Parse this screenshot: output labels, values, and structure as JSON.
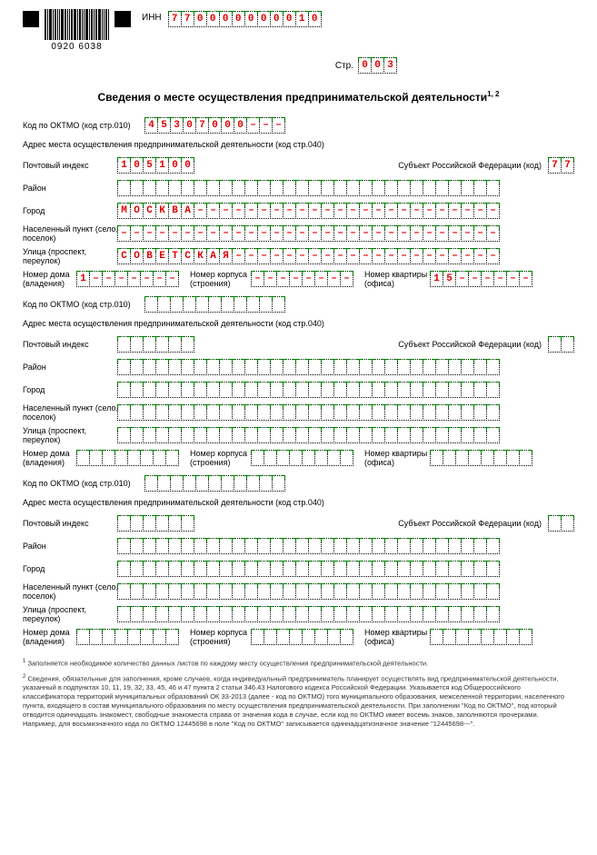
{
  "barcode_number": "0920 6038",
  "inn_label": "ИНН",
  "inn": [
    "7",
    "7",
    "0",
    "0",
    "0",
    "0",
    "0",
    "0",
    "0",
    "0",
    "1",
    "0"
  ],
  "str_label": "Стр.",
  "str": [
    "0",
    "0",
    "3"
  ],
  "title": "Сведения о месте осуществления предпринимательской деятельности",
  "title_sup": "1, 2",
  "labels": {
    "oktmo": "Код по ОКТМО (код стр.010)",
    "addr_heading": "Адрес места осуществления предпринимательской деятельности (код стр.040)",
    "post_index": "Почтовый индекс",
    "subject": "Субъект Российской Федерации (код)",
    "raion": "Район",
    "gorod": "Город",
    "nas_punkt": "Населенный пункт (село, поселок)",
    "ulica": "Улица (проспект, переулок)",
    "dom": "Номер дома (владения)",
    "korpus": "Номер корпуса (строения)",
    "kvartira": "Номер квартиры (офиса)"
  },
  "blocks": [
    {
      "oktmo": [
        "4",
        "5",
        "3",
        "0",
        "7",
        "0",
        "0",
        "0",
        "–",
        "–",
        "–"
      ],
      "post_index": [
        "1",
        "0",
        "5",
        "1",
        "0",
        "0"
      ],
      "subject": [
        "7",
        "7"
      ],
      "raion_len": 30,
      "raion": [],
      "gorod_len": 30,
      "gorod": [
        "М",
        "О",
        "С",
        "К",
        "В",
        "А",
        "–",
        "–",
        "–",
        "–",
        "–",
        "–",
        "–",
        "–",
        "–",
        "–",
        "–",
        "–",
        "–",
        "–",
        "–",
        "–",
        "–",
        "–",
        "–",
        "–",
        "–",
        "–",
        "–",
        "–"
      ],
      "nas_len": 30,
      "nas": [
        "–",
        "–",
        "–",
        "–",
        "–",
        "–",
        "–",
        "–",
        "–",
        "–",
        "–",
        "–",
        "–",
        "–",
        "–",
        "–",
        "–",
        "–",
        "–",
        "–",
        "–",
        "–",
        "–",
        "–",
        "–",
        "–",
        "–",
        "–",
        "–",
        "–"
      ],
      "ulica_len": 30,
      "ulica": [
        "С",
        "О",
        "В",
        "Е",
        "Т",
        "С",
        "К",
        "А",
        "Я",
        "–",
        "–",
        "–",
        "–",
        "–",
        "–",
        "–",
        "–",
        "–",
        "–",
        "–",
        "–",
        "–",
        "–",
        "–",
        "–",
        "–",
        "–",
        "–",
        "–",
        "–"
      ],
      "dom": [
        "1",
        "–",
        "–",
        "–",
        "–",
        "–",
        "–",
        "–"
      ],
      "korpus": [
        "–",
        "–",
        "–",
        "–",
        "–",
        "–",
        "–",
        "–"
      ],
      "kvartira": [
        "1",
        "5",
        "–",
        "–",
        "–",
        "–",
        "–",
        "–"
      ]
    },
    {
      "oktmo": [
        "",
        "",
        "",
        "",
        "",
        "",
        "",
        "",
        "",
        "",
        ""
      ],
      "post_index": [
        "",
        "",
        "",
        "",
        "",
        ""
      ],
      "subject": [
        "",
        ""
      ],
      "raion_len": 30,
      "raion": [],
      "gorod_len": 30,
      "gorod": [],
      "nas_len": 30,
      "nas": [],
      "ulica_len": 30,
      "ulica": [],
      "dom": [
        "",
        "",
        "",
        "",
        "",
        "",
        "",
        ""
      ],
      "korpus": [
        "",
        "",
        "",
        "",
        "",
        "",
        "",
        ""
      ],
      "kvartira": [
        "",
        "",
        "",
        "",
        "",
        "",
        "",
        ""
      ]
    },
    {
      "oktmo": [
        "",
        "",
        "",
        "",
        "",
        "",
        "",
        "",
        "",
        "",
        ""
      ],
      "post_index": [
        "",
        "",
        "",
        "",
        "",
        ""
      ],
      "subject": [
        "",
        ""
      ],
      "raion_len": 30,
      "raion": [],
      "gorod_len": 30,
      "gorod": [],
      "nas_len": 30,
      "nas": [],
      "ulica_len": 30,
      "ulica": [],
      "dom": [
        "",
        "",
        "",
        "",
        "",
        "",
        "",
        ""
      ],
      "korpus": [
        "",
        "",
        "",
        "",
        "",
        "",
        "",
        ""
      ],
      "kvartira": [
        "",
        "",
        "",
        "",
        "",
        "",
        "",
        ""
      ]
    }
  ],
  "footnote1": "Заполняется необходимое количество данных листов по каждому месту осуществления предпринимательской деятельности.",
  "footnote2": "Сведения, обязательные для заполнения, кроме случаев, когда индивидуальный предприниматель планирует осуществлять вид предпринимательской деятельности, указанный в подпунктах 10, 11, 19, 32, 33, 45, 46 и 47 пункта 2 статьи 346.43 Налогового кодекса Российской Федерации. Указывается код Общероссийского классификатора территорий муниципальных образований ОК 33-2013 (далее - код по ОКТМО) того муниципального образования, межселенной территории, населенного пункта, входящего в состав муниципального образования по месту осуществления предпринимательской деятельности. При заполнении \"Код по ОКТМО\", под который отводится одиннадцать знакомест, свободные знакоместа справа от значения кода в случае, если код по ОКТМО имеет восемь знаков, заполняются прочерками. Например, для восьмизначного кода по ОКТМО 12445698 в поле \"Код по ОКТМО\" записывается одиннадцатизначное значение \"12445698---\"."
}
